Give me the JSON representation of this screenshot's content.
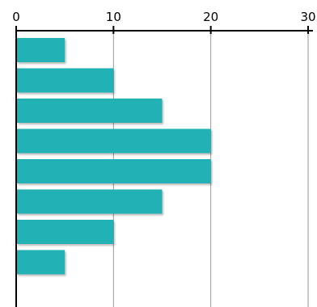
{
  "chart_data": {
    "type": "bar",
    "orientation": "horizontal",
    "values": [
      5,
      10,
      15,
      20,
      20,
      15,
      10,
      5
    ],
    "xlim": [
      0,
      30
    ],
    "x_ticks": [
      "0",
      "10",
      "20",
      "30"
    ],
    "axis_position": "top",
    "grid": true,
    "legend": "none",
    "bar_color": "#20b2b5",
    "grid_color": "#9a9a9a"
  }
}
